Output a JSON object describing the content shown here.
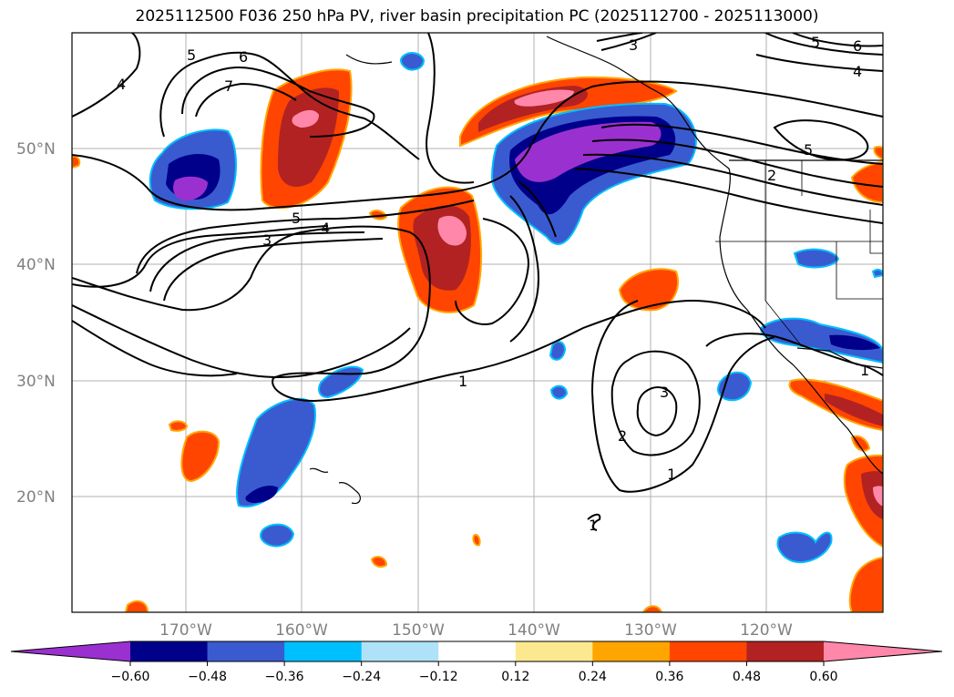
{
  "title": "2025112500 F036 250 hPa PV, river basin precipitation PC (2025112700 - 2025113000)",
  "map": {
    "lat_labels": [
      "50°N",
      "40°N",
      "30°N",
      "20°N"
    ],
    "lon_labels": [
      "170°W",
      "160°W",
      "150°W",
      "140°W",
      "130°W",
      "120°W"
    ],
    "contour_labels": [
      "4",
      "5",
      "6",
      "7",
      "3",
      "5",
      "6",
      "4",
      "5",
      "4",
      "3",
      "1",
      "3",
      "2",
      "1",
      "1",
      "2",
      "5",
      "1"
    ]
  },
  "colorbar": {
    "ticks": [
      "−0.60",
      "−0.48",
      "−0.36",
      "−0.24",
      "−0.12",
      "0.12",
      "0.24",
      "0.36",
      "0.48",
      "0.60"
    ],
    "colors": [
      "#9b30d0",
      "#00008b",
      "#3a5bd0",
      "#00bfff",
      "#aee2f8",
      "#ffffff",
      "#fce98f",
      "#ffa500",
      "#ff4500",
      "#b22222",
      "#ff88aa"
    ]
  }
}
